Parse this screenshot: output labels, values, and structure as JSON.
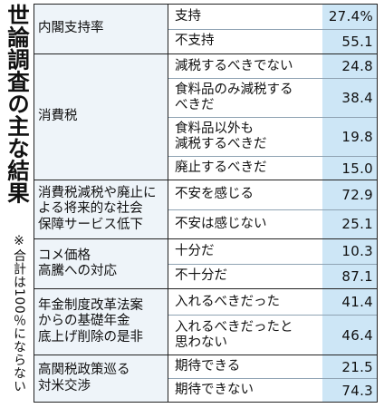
{
  "side_title": "世論調査の主な結果",
  "side_note": "※合計は100％にならない",
  "groups": [
    {
      "topic": "内閣支持率",
      "rows": [
        {
          "option": "支持",
          "value": "27.4%"
        },
        {
          "option": "不支持",
          "value": "55.1"
        }
      ]
    },
    {
      "topic": "消費税",
      "rows": [
        {
          "option": "減税するべきでない",
          "value": "24.8"
        },
        {
          "option": "食料品のみ減税する\nべきだ",
          "value": "38.4"
        },
        {
          "option": "食料品以外も\n減税するべきだ",
          "value": "19.8"
        },
        {
          "option": "廃止するべきだ",
          "value": "15.0"
        }
      ]
    },
    {
      "topic": "消費税減税や廃止に\nよる将来的な社会\n保障サービス低下",
      "rows": [
        {
          "option": "不安を感じる",
          "value": "72.9"
        },
        {
          "option": "不安は感じない",
          "value": "25.1"
        }
      ]
    },
    {
      "topic": "コメ価格\n高騰への対応",
      "rows": [
        {
          "option": "十分だ",
          "value": "10.3"
        },
        {
          "option": "不十分だ",
          "value": "87.1"
        }
      ]
    },
    {
      "topic": "年金制度改革法案\nからの基礎年金\n底上げ削除の是非",
      "rows": [
        {
          "option": "入れるべきだった",
          "value": "41.4"
        },
        {
          "option": "入れるべきだったと\n思わない",
          "value": "46.4"
        }
      ]
    },
    {
      "topic": "高関税政策巡る\n対米交渉",
      "rows": [
        {
          "option": "期待できる",
          "value": "21.5"
        },
        {
          "option": "期待できない",
          "value": "74.3"
        }
      ]
    }
  ]
}
